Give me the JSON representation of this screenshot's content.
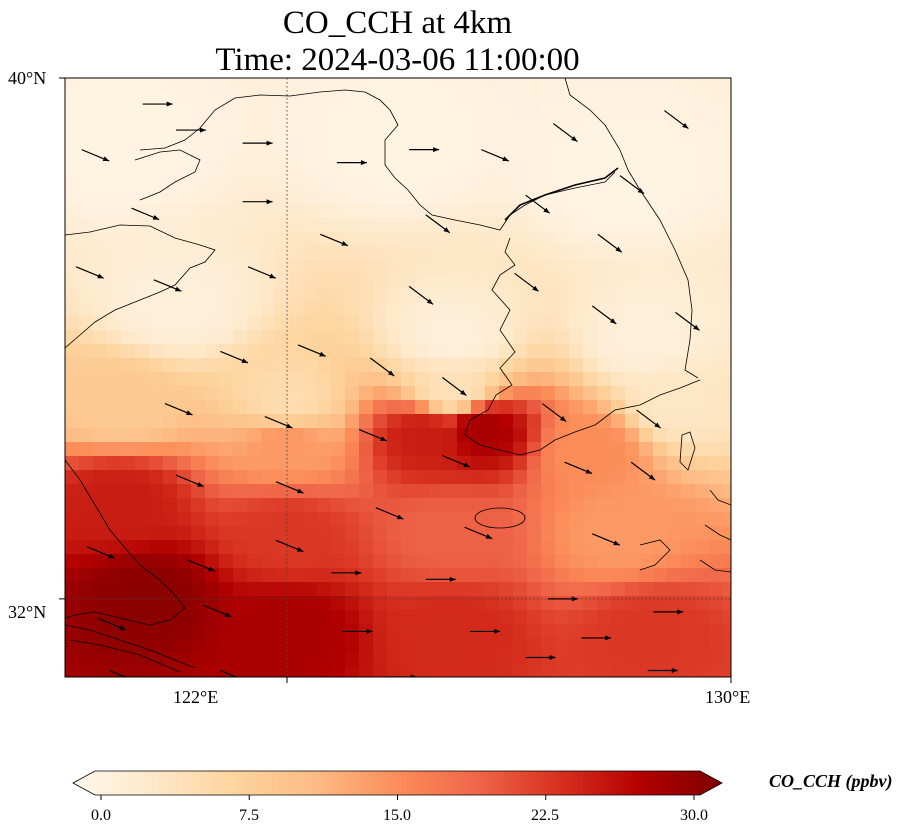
{
  "title": {
    "line1": "CO_CCH at 4km",
    "line2": "Time: 2024-03-06 11:00:00"
  },
  "map": {
    "projection": "PlateCarree",
    "lon_range": [
      118.0,
      130.0
    ],
    "lat_range": [
      30.8,
      40.0
    ],
    "gridlines": {
      "lons": [
        122,
        130
      ],
      "lats": [
        32,
        40
      ],
      "style": "dotted"
    },
    "coastlines": true,
    "x_tick_labels": [
      "122°E",
      "130°E"
    ],
    "y_tick_labels": [
      "40°N",
      "32°N"
    ]
  },
  "colorbar": {
    "cmap": "OrRd",
    "label": "CO_CCH (ppbv)",
    "min": 0.0,
    "max": 30.0,
    "extend": "both",
    "tick_labels": [
      "0.0",
      "7.5",
      "15.0",
      "22.5",
      "30.0"
    ],
    "colors": [
      "#fff7ec",
      "#fee8c8",
      "#fdd49e",
      "#fdbb84",
      "#fc8d59",
      "#ef6548",
      "#d7301f",
      "#b30000",
      "#7f0000"
    ]
  },
  "chart_data": {
    "type": "heatmap",
    "title": "CO_CCH at 4km\nTime: 2024-03-06 11:00:00",
    "variable": "CO_CCH",
    "units": "ppbv",
    "field_description": "Low values (<2 ppbv) over the northern Yellow Sea, Korean Peninsula and Shandong; a gradient southward with a band of 20-28 ppbv around 34.5°N 124-126°E; highest values (~28-30 ppbv) over the East China coast south of 33°N.",
    "field_samples": [
      {
        "lon": 119.0,
        "lat": 39.0,
        "value": 1
      },
      {
        "lon": 124.0,
        "lat": 39.0,
        "value": 1
      },
      {
        "lon": 128.0,
        "lat": 38.5,
        "value": 1
      },
      {
        "lon": 120.0,
        "lat": 36.5,
        "value": 2
      },
      {
        "lon": 125.0,
        "lat": 36.0,
        "value": 2
      },
      {
        "lon": 128.5,
        "lat": 36.0,
        "value": 2
      },
      {
        "lon": 119.0,
        "lat": 35.0,
        "value": 9
      },
      {
        "lon": 122.0,
        "lat": 35.0,
        "value": 6
      },
      {
        "lon": 125.0,
        "lat": 35.2,
        "value": 5
      },
      {
        "lon": 129.0,
        "lat": 35.0,
        "value": 4
      },
      {
        "lon": 122.0,
        "lat": 34.4,
        "value": 14
      },
      {
        "lon": 124.5,
        "lat": 34.5,
        "value": 24
      },
      {
        "lon": 125.5,
        "lat": 34.6,
        "value": 27
      },
      {
        "lon": 127.5,
        "lat": 34.3,
        "value": 15
      },
      {
        "lon": 119.0,
        "lat": 33.5,
        "value": 24
      },
      {
        "lon": 122.0,
        "lat": 33.0,
        "value": 22
      },
      {
        "lon": 125.0,
        "lat": 33.0,
        "value": 19
      },
      {
        "lon": 128.0,
        "lat": 33.0,
        "value": 14
      },
      {
        "lon": 119.5,
        "lat": 32.0,
        "value": 29
      },
      {
        "lon": 122.0,
        "lat": 31.5,
        "value": 27
      },
      {
        "lon": 125.0,
        "lat": 31.5,
        "value": 23
      },
      {
        "lon": 128.5,
        "lat": 31.5,
        "value": 22
      }
    ],
    "wind_vectors": [
      {
        "lon": 118.3,
        "lat": 38.9,
        "dir": "ESE"
      },
      {
        "lon": 119.4,
        "lat": 39.6,
        "dir": "E"
      },
      {
        "lon": 120.0,
        "lat": 39.2,
        "dir": "E"
      },
      {
        "lon": 121.2,
        "lat": 39.0,
        "dir": "E"
      },
      {
        "lon": 122.9,
        "lat": 38.7,
        "dir": "E"
      },
      {
        "lon": 124.2,
        "lat": 38.9,
        "dir": "E"
      },
      {
        "lon": 125.5,
        "lat": 38.9,
        "dir": "ESE"
      },
      {
        "lon": 126.8,
        "lat": 39.3,
        "dir": "SE"
      },
      {
        "lon": 128.0,
        "lat": 38.5,
        "dir": "SE"
      },
      {
        "lon": 128.8,
        "lat": 39.5,
        "dir": "SE"
      },
      {
        "lon": 119.2,
        "lat": 38.0,
        "dir": "ESE"
      },
      {
        "lon": 121.2,
        "lat": 38.1,
        "dir": "E"
      },
      {
        "lon": 122.6,
        "lat": 37.6,
        "dir": "ESE"
      },
      {
        "lon": 124.5,
        "lat": 37.9,
        "dir": "SE"
      },
      {
        "lon": 126.3,
        "lat": 38.2,
        "dir": "SE"
      },
      {
        "lon": 127.6,
        "lat": 37.6,
        "dir": "SE"
      },
      {
        "lon": 118.2,
        "lat": 37.1,
        "dir": "ESE"
      },
      {
        "lon": 119.6,
        "lat": 36.9,
        "dir": "ESE"
      },
      {
        "lon": 121.3,
        "lat": 37.1,
        "dir": "ESE"
      },
      {
        "lon": 124.2,
        "lat": 36.8,
        "dir": "SE"
      },
      {
        "lon": 126.1,
        "lat": 37.0,
        "dir": "SE"
      },
      {
        "lon": 127.5,
        "lat": 36.5,
        "dir": "SE"
      },
      {
        "lon": 129.0,
        "lat": 36.4,
        "dir": "SE"
      },
      {
        "lon": 120.8,
        "lat": 35.8,
        "dir": "ESE"
      },
      {
        "lon": 122.2,
        "lat": 35.9,
        "dir": "ESE"
      },
      {
        "lon": 123.5,
        "lat": 35.7,
        "dir": "SE"
      },
      {
        "lon": 124.8,
        "lat": 35.4,
        "dir": "SE"
      },
      {
        "lon": 126.6,
        "lat": 35.0,
        "dir": "SE"
      },
      {
        "lon": 128.3,
        "lat": 34.9,
        "dir": "SE"
      },
      {
        "lon": 119.8,
        "lat": 35.0,
        "dir": "ESE"
      },
      {
        "lon": 121.6,
        "lat": 34.8,
        "dir": "ESE"
      },
      {
        "lon": 123.3,
        "lat": 34.6,
        "dir": "ESE"
      },
      {
        "lon": 124.8,
        "lat": 34.2,
        "dir": "ESE"
      },
      {
        "lon": 127.0,
        "lat": 34.1,
        "dir": "ESE"
      },
      {
        "lon": 128.2,
        "lat": 34.1,
        "dir": "SE"
      },
      {
        "lon": 120.0,
        "lat": 33.9,
        "dir": "ESE"
      },
      {
        "lon": 121.8,
        "lat": 33.8,
        "dir": "ESE"
      },
      {
        "lon": 123.6,
        "lat": 33.4,
        "dir": "ESE"
      },
      {
        "lon": 125.2,
        "lat": 33.1,
        "dir": "ESE"
      },
      {
        "lon": 127.5,
        "lat": 33.0,
        "dir": "ESE"
      },
      {
        "lon": 118.4,
        "lat": 32.8,
        "dir": "ESE"
      },
      {
        "lon": 120.2,
        "lat": 32.6,
        "dir": "ESE"
      },
      {
        "lon": 121.8,
        "lat": 32.9,
        "dir": "ESE"
      },
      {
        "lon": 122.8,
        "lat": 32.4,
        "dir": "E"
      },
      {
        "lon": 124.5,
        "lat": 32.3,
        "dir": "E"
      },
      {
        "lon": 126.7,
        "lat": 32.0,
        "dir": "E"
      },
      {
        "lon": 128.6,
        "lat": 31.8,
        "dir": "E"
      },
      {
        "lon": 118.6,
        "lat": 31.7,
        "dir": "ESE"
      },
      {
        "lon": 120.5,
        "lat": 31.9,
        "dir": "ESE"
      },
      {
        "lon": 123.0,
        "lat": 31.5,
        "dir": "E"
      },
      {
        "lon": 125.3,
        "lat": 31.5,
        "dir": "E"
      },
      {
        "lon": 127.3,
        "lat": 31.4,
        "dir": "E"
      },
      {
        "lon": 118.8,
        "lat": 30.9,
        "dir": "ESE"
      },
      {
        "lon": 120.8,
        "lat": 30.9,
        "dir": "ESE"
      },
      {
        "lon": 123.8,
        "lat": 30.8,
        "dir": "E"
      },
      {
        "lon": 126.3,
        "lat": 31.1,
        "dir": "E"
      },
      {
        "lon": 128.5,
        "lat": 30.9,
        "dir": "E"
      }
    ]
  }
}
